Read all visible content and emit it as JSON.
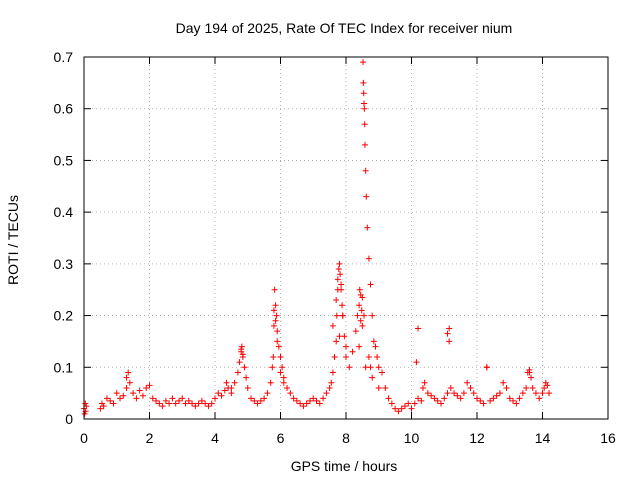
{
  "colors": {
    "series": "#ff0000",
    "grid": "#a0a0a0",
    "axis": "#000000"
  },
  "chart_data": {
    "type": "scatter",
    "title": "Day 194 of 2025, Rate Of TEC Index for receiver nium",
    "xlabel": "GPS time / hours",
    "ylabel": "ROTI / TECUs",
    "xlim": [
      0,
      16
    ],
    "ylim": [
      0,
      0.7
    ],
    "x_ticks": [
      0,
      2,
      4,
      6,
      8,
      10,
      12,
      14,
      16
    ],
    "x_tick_labels": [
      "0",
      "2",
      "4",
      "6",
      "8",
      "10",
      "12",
      "14",
      "16"
    ],
    "y_ticks": [
      0,
      0.1,
      0.2,
      0.3,
      0.4,
      0.5,
      0.6,
      0.7
    ],
    "y_tick_labels": [
      "0",
      "0.1",
      "0.2",
      "0.3",
      "0.4",
      "0.5",
      "0.6",
      "0.7"
    ],
    "grid": true,
    "marker": "+",
    "series": [
      {
        "name": "ROTI",
        "x": [
          0.0,
          0.02,
          0.04,
          0.05,
          0.07,
          0.5,
          0.55,
          0.6,
          0.7,
          0.8,
          0.9,
          1.0,
          1.1,
          1.2,
          1.3,
          1.35,
          1.4,
          1.5,
          1.6,
          1.7,
          1.8,
          1.9,
          2.0,
          2.1,
          2.2,
          2.3,
          2.4,
          2.5,
          2.6,
          2.7,
          2.8,
          2.9,
          3.0,
          3.1,
          3.2,
          3.3,
          3.4,
          3.5,
          3.6,
          3.7,
          3.8,
          3.9,
          4.0,
          4.1,
          4.2,
          4.3,
          4.35,
          4.4,
          4.5,
          4.6,
          4.7,
          4.75,
          4.8,
          4.82,
          4.85,
          4.9,
          4.95,
          5.0,
          5.1,
          5.2,
          5.3,
          5.4,
          5.5,
          5.6,
          5.7,
          5.75,
          5.78,
          5.8,
          5.82,
          5.85,
          5.88,
          5.9,
          5.95,
          6.0,
          6.05,
          6.1,
          6.2,
          6.3,
          6.4,
          6.5,
          6.6,
          6.7,
          6.8,
          6.9,
          7.0,
          7.1,
          7.2,
          7.3,
          7.4,
          7.5,
          7.55,
          7.6,
          7.65,
          7.7,
          7.72,
          7.75,
          7.78,
          7.8,
          7.82,
          7.85,
          7.88,
          7.9,
          7.95,
          8.0,
          8.1,
          8.2,
          8.3,
          8.35,
          8.4,
          8.42,
          8.45,
          8.48,
          8.5,
          8.52,
          8.53,
          8.54,
          8.55,
          8.56,
          8.57,
          8.58,
          8.6,
          8.62,
          8.65,
          8.7,
          8.75,
          8.8,
          8.85,
          8.9,
          8.95,
          9.0,
          9.1,
          9.2,
          9.3,
          9.4,
          9.5,
          9.6,
          9.7,
          9.8,
          9.9,
          10.0,
          10.1,
          10.15,
          10.2,
          10.3,
          10.35,
          10.4,
          10.5,
          10.6,
          10.7,
          10.8,
          10.9,
          11.0,
          11.1,
          11.15,
          11.2,
          11.3,
          11.4,
          11.5,
          11.6,
          11.7,
          11.8,
          11.9,
          12.0,
          12.1,
          12.2,
          12.3,
          12.4,
          12.5,
          12.6,
          12.7,
          12.8,
          12.9,
          13.0,
          13.1,
          13.2,
          13.3,
          13.4,
          13.5,
          13.55,
          13.6,
          13.65,
          13.7,
          13.8,
          13.9,
          14.0,
          14.05,
          14.1,
          14.15,
          14.2,
          5.8,
          5.85,
          5.9,
          7.7,
          7.75,
          7.8,
          7.85,
          8.4,
          8.45,
          8.5,
          8.55,
          10.2,
          11.1,
          11.15,
          13.6,
          4.8,
          4.85,
          1.3,
          12.3,
          8.7,
          8.75,
          8.8,
          7.9,
          7.6,
          8.0,
          8.6,
          9.0,
          6.0,
          6.1,
          4.5
        ],
        "y": [
          0.02,
          0.01,
          0.03,
          0.015,
          0.025,
          0.02,
          0.03,
          0.025,
          0.04,
          0.035,
          0.03,
          0.05,
          0.04,
          0.045,
          0.06,
          0.09,
          0.07,
          0.05,
          0.04,
          0.055,
          0.045,
          0.06,
          0.065,
          0.04,
          0.035,
          0.03,
          0.025,
          0.035,
          0.03,
          0.04,
          0.03,
          0.035,
          0.04,
          0.03,
          0.035,
          0.03,
          0.025,
          0.03,
          0.035,
          0.03,
          0.025,
          0.03,
          0.04,
          0.05,
          0.045,
          0.055,
          0.07,
          0.06,
          0.05,
          0.07,
          0.09,
          0.11,
          0.13,
          0.14,
          0.12,
          0.1,
          0.08,
          0.06,
          0.04,
          0.035,
          0.03,
          0.035,
          0.04,
          0.05,
          0.07,
          0.1,
          0.12,
          0.18,
          0.25,
          0.22,
          0.2,
          0.17,
          0.14,
          0.12,
          0.1,
          0.08,
          0.06,
          0.05,
          0.04,
          0.035,
          0.03,
          0.025,
          0.03,
          0.035,
          0.04,
          0.035,
          0.03,
          0.04,
          0.05,
          0.06,
          0.07,
          0.09,
          0.12,
          0.15,
          0.2,
          0.25,
          0.29,
          0.3,
          0.28,
          0.26,
          0.22,
          0.2,
          0.16,
          0.12,
          0.1,
          0.13,
          0.17,
          0.2,
          0.22,
          0.25,
          0.24,
          0.21,
          0.18,
          0.69,
          0.65,
          0.63,
          0.61,
          0.6,
          0.57,
          0.53,
          0.48,
          0.43,
          0.37,
          0.31,
          0.26,
          0.2,
          0.15,
          0.14,
          0.12,
          0.1,
          0.09,
          0.06,
          0.04,
          0.03,
          0.02,
          0.015,
          0.02,
          0.025,
          0.03,
          0.02,
          0.03,
          0.11,
          0.04,
          0.035,
          0.06,
          0.07,
          0.05,
          0.045,
          0.04,
          0.035,
          0.03,
          0.04,
          0.05,
          0.175,
          0.06,
          0.05,
          0.045,
          0.04,
          0.05,
          0.07,
          0.06,
          0.05,
          0.04,
          0.035,
          0.03,
          0.1,
          0.035,
          0.04,
          0.045,
          0.05,
          0.07,
          0.06,
          0.04,
          0.035,
          0.03,
          0.04,
          0.05,
          0.06,
          0.09,
          0.095,
          0.08,
          0.06,
          0.05,
          0.04,
          0.05,
          0.06,
          0.07,
          0.065,
          0.05,
          0.21,
          0.19,
          0.15,
          0.23,
          0.27,
          0.16,
          0.25,
          0.14,
          0.19,
          0.235,
          0.2,
          0.175,
          0.165,
          0.15,
          0.09,
          0.135,
          0.125,
          0.08,
          0.1,
          0.12,
          0.1,
          0.08,
          0.2,
          0.18,
          0.14,
          0.1,
          0.06,
          0.09,
          0.07,
          0.06
        ]
      }
    ]
  }
}
